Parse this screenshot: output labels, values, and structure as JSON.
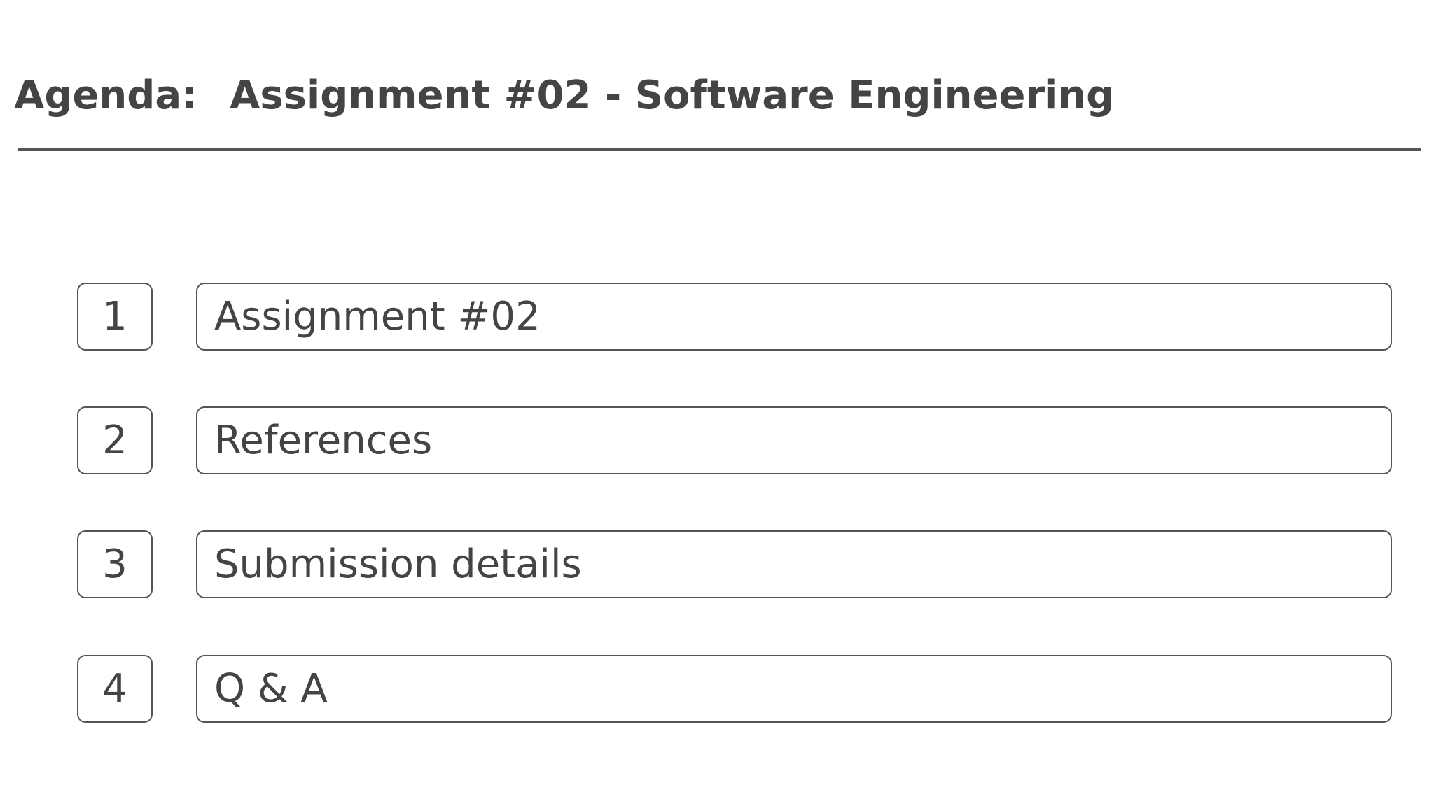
{
  "header": {
    "label": "Agenda:",
    "title": "Assignment #02 - Software Engineering"
  },
  "agenda": {
    "items": [
      {
        "number": "1",
        "label": "Assignment #02"
      },
      {
        "number": "2",
        "label": "References"
      },
      {
        "number": "3",
        "label": "Submission details"
      },
      {
        "number": "4",
        "label": "Q & A"
      }
    ]
  },
  "colors": {
    "text": "#444444",
    "border": "#555555",
    "background": "#ffffff"
  }
}
